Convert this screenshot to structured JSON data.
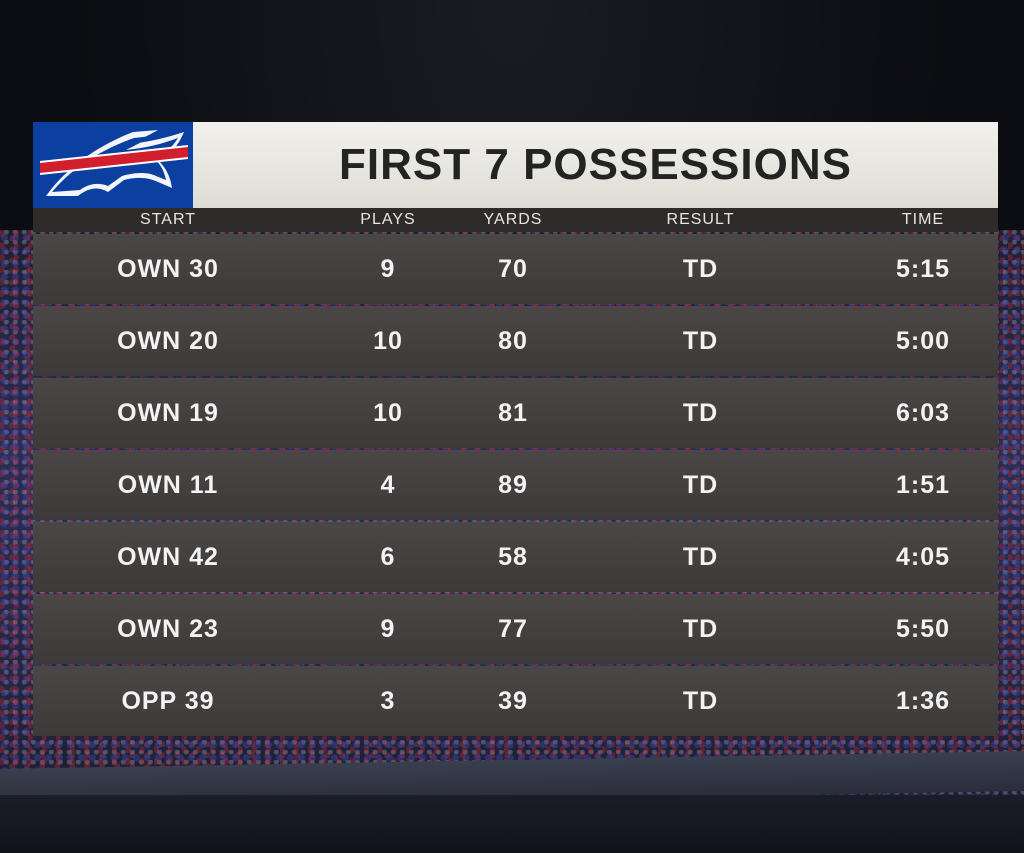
{
  "graphic": {
    "title": "FIRST 7 POSSESSIONS",
    "team_logo": "buffalo-bills-logo",
    "colors": {
      "logo_bg": "#0b3fa0",
      "logo_red": "#d11f2e",
      "title_bg": "#eeede8",
      "row_bg": "#444140"
    },
    "columns": {
      "start": "START",
      "plays": "PLAYS",
      "yards": "YARDS",
      "result": "RESULT",
      "time": "TIME"
    },
    "rows": [
      {
        "start": "OWN 30",
        "plays": "9",
        "yards": "70",
        "result": "TD",
        "time": "5:15"
      },
      {
        "start": "OWN 20",
        "plays": "10",
        "yards": "80",
        "result": "TD",
        "time": "5:00"
      },
      {
        "start": "OWN 19",
        "plays": "10",
        "yards": "81",
        "result": "TD",
        "time": "6:03"
      },
      {
        "start": "OWN 11",
        "plays": "4",
        "yards": "89",
        "result": "TD",
        "time": "1:51"
      },
      {
        "start": "OWN 42",
        "plays": "6",
        "yards": "58",
        "result": "TD",
        "time": "4:05"
      },
      {
        "start": "OWN 23",
        "plays": "9",
        "yards": "77",
        "result": "TD",
        "time": "5:50"
      },
      {
        "start": "OPP 39",
        "plays": "3",
        "yards": "39",
        "result": "TD",
        "time": "1:36"
      }
    ]
  }
}
